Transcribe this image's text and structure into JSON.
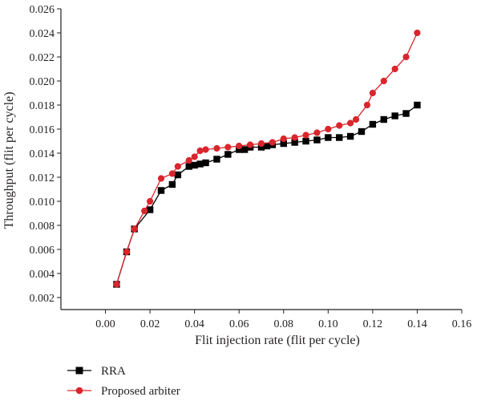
{
  "chart_data": {
    "type": "line",
    "title": "",
    "xlabel": "Flit injection rate (flit per cycle)",
    "ylabel": "Throughput (flit per cycle)",
    "xlim": [
      -0.02,
      0.16
    ],
    "ylim": [
      0.001,
      0.026
    ],
    "x_ticks": [
      0.0,
      0.02,
      0.04,
      0.06,
      0.08,
      0.1,
      0.12,
      0.14,
      0.16
    ],
    "x_tick_labels": [
      "0.00",
      "0.02",
      "0.04",
      "0.06",
      "0.08",
      "0.10",
      "0.12",
      "0.14",
      "0.16"
    ],
    "y_ticks": [
      0.002,
      0.004,
      0.006,
      0.008,
      0.01,
      0.012,
      0.014,
      0.016,
      0.018,
      0.02,
      0.022,
      0.024,
      0.026
    ],
    "y_tick_labels": [
      "0.002",
      "0.004",
      "0.006",
      "0.008",
      "0.010",
      "0.012",
      "0.014",
      "0.016",
      "0.018",
      "0.020",
      "0.022",
      "0.024",
      "0.026"
    ],
    "grid": false,
    "legend_position": "bottom-left",
    "series": [
      {
        "name": "RRA",
        "color": "#000000",
        "marker": "square",
        "x": [
          0.005,
          0.0095,
          0.013,
          0.02,
          0.025,
          0.03,
          0.0325,
          0.0375,
          0.04,
          0.0425,
          0.045,
          0.05,
          0.055,
          0.06,
          0.0625,
          0.065,
          0.07,
          0.0725,
          0.075,
          0.08,
          0.085,
          0.09,
          0.095,
          0.1,
          0.105,
          0.11,
          0.115,
          0.12,
          0.125,
          0.13,
          0.135,
          0.14
        ],
        "y": [
          0.0031,
          0.0058,
          0.0077,
          0.0093,
          0.0109,
          0.0114,
          0.0122,
          0.0129,
          0.013,
          0.0131,
          0.0132,
          0.0135,
          0.0139,
          0.0143,
          0.0143,
          0.0145,
          0.0145,
          0.0146,
          0.0147,
          0.0148,
          0.0149,
          0.015,
          0.0151,
          0.0153,
          0.0153,
          0.0154,
          0.0158,
          0.0164,
          0.0168,
          0.0171,
          0.0173,
          0.018
        ]
      },
      {
        "name": "Proposed arbiter",
        "color": "#d9262c",
        "marker": "circle",
        "x": [
          0.005,
          0.0095,
          0.013,
          0.0175,
          0.02,
          0.025,
          0.03,
          0.0325,
          0.0375,
          0.04,
          0.0425,
          0.045,
          0.05,
          0.055,
          0.06,
          0.065,
          0.07,
          0.075,
          0.08,
          0.085,
          0.09,
          0.095,
          0.1,
          0.105,
          0.11,
          0.1125,
          0.1175,
          0.12,
          0.125,
          0.13,
          0.135,
          0.14
        ],
        "y": [
          0.0031,
          0.0058,
          0.0077,
          0.0092,
          0.01,
          0.0119,
          0.0123,
          0.0129,
          0.0134,
          0.0137,
          0.0142,
          0.0143,
          0.0144,
          0.0145,
          0.0146,
          0.0147,
          0.0148,
          0.0149,
          0.0152,
          0.0153,
          0.0155,
          0.0157,
          0.016,
          0.0163,
          0.0165,
          0.0168,
          0.018,
          0.019,
          0.02,
          0.021,
          0.022,
          0.024
        ]
      }
    ]
  }
}
